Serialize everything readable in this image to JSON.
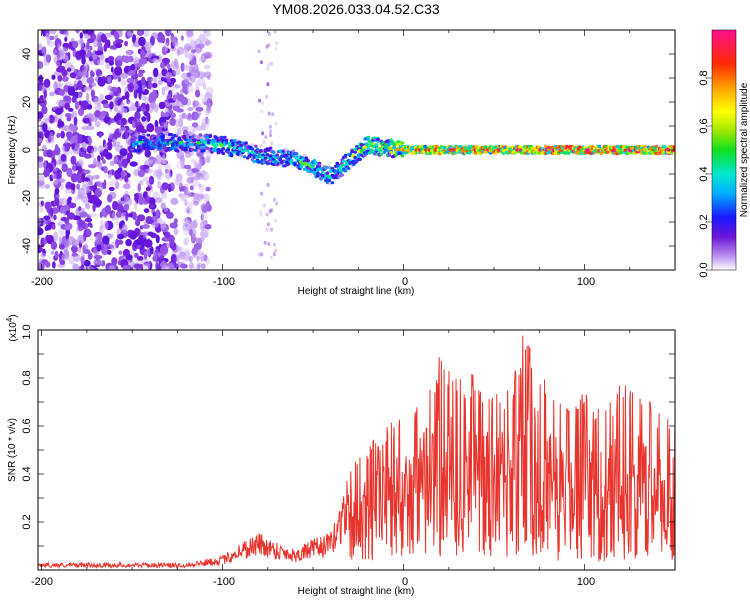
{
  "title": "YM08.2026.033.04.52.C33",
  "top_panel": {
    "ylabel": "Frequency (Hz)",
    "xlabel": "Height of straight line (km)",
    "x_ticks": [
      "-200",
      "-100",
      "0",
      "100"
    ],
    "y_ticks": [
      "40",
      "20",
      "0",
      "-20",
      "-40"
    ],
    "colorbar_label": "Normalized spectral amplitude",
    "colorbar_ticks": [
      "0.0",
      "0.2",
      "0.4",
      "0.6",
      "0.8"
    ]
  },
  "bottom_panel": {
    "ylabel": "SNR (10 * v/v)",
    "scale_label": "(x10",
    "scale_exp": "4",
    "scale_close": ")",
    "xlabel": "Height of straight line (km)",
    "x_ticks": [
      "-200",
      "-100",
      "0",
      "100"
    ],
    "y_ticks": [
      "1.0",
      "0.8",
      "0.6",
      "0.4",
      "0.2"
    ]
  },
  "colors": {
    "line": "#e8342c",
    "frame": "#000000"
  },
  "chart_data": [
    {
      "type": "heatmap",
      "title": "YM08.2026.033.04.52.C33",
      "xlabel": "Height of straight line (km)",
      "ylabel": "Frequency (Hz)",
      "xlim": [
        -202,
        150
      ],
      "ylim": [
        -50,
        50
      ],
      "x_ticks": [
        -200,
        -100,
        0,
        100
      ],
      "y_ticks": [
        -40,
        -20,
        0,
        20,
        40
      ],
      "colorbar": {
        "label": "Normalized spectral amplitude",
        "range": [
          0,
          1
        ],
        "ticks": [
          0.0,
          0.2,
          0.4,
          0.6,
          0.8
        ]
      },
      "ridge": [
        {
          "x": -140,
          "freq": 3,
          "amp": 0.35
        },
        {
          "x": -110,
          "freq": 3,
          "amp": 0.4
        },
        {
          "x": -100,
          "freq": 2,
          "amp": 0.45
        },
        {
          "x": -90,
          "freq": 0,
          "amp": 0.45
        },
        {
          "x": -80,
          "freq": -2,
          "amp": 0.45
        },
        {
          "x": -70,
          "freq": -3,
          "amp": 0.45
        },
        {
          "x": -60,
          "freq": -4,
          "amp": 0.45
        },
        {
          "x": -50,
          "freq": -7,
          "amp": 0.45
        },
        {
          "x": -40,
          "freq": -11,
          "amp": 0.45
        },
        {
          "x": -35,
          "freq": -8,
          "amp": 0.45
        },
        {
          "x": -30,
          "freq": -4,
          "amp": 0.5
        },
        {
          "x": -20,
          "freq": 2,
          "amp": 0.6
        },
        {
          "x": -10,
          "freq": 1,
          "amp": 0.6
        },
        {
          "x": 0,
          "freq": 0,
          "amp": 0.7
        },
        {
          "x": 20,
          "freq": 0,
          "amp": 0.8
        },
        {
          "x": 50,
          "freq": 0,
          "amp": 0.85
        },
        {
          "x": 80,
          "freq": 0,
          "amp": 0.9
        },
        {
          "x": 120,
          "freq": 0,
          "amp": 0.9
        },
        {
          "x": 150,
          "freq": 0,
          "amp": 0.9
        }
      ]
    },
    {
      "type": "line",
      "xlabel": "Height of straight line (km)",
      "ylabel": "SNR (10 * v/v)",
      "y_multiplier": 10000,
      "xlim": [
        -202,
        150
      ],
      "ylim": [
        0,
        1.0
      ],
      "x_ticks": [
        -200,
        -100,
        0,
        100
      ],
      "y_ticks": [
        0.2,
        0.4,
        0.6,
        0.8,
        1.0
      ],
      "envelope": {
        "x": [
          -202,
          -150,
          -120,
          -100,
          -90,
          -80,
          -70,
          -60,
          -50,
          -40,
          -30,
          -20,
          -10,
          0,
          10,
          20,
          30,
          40,
          50,
          60,
          70,
          80,
          90,
          100,
          110,
          120,
          130,
          140,
          150
        ],
        "max": [
          0.03,
          0.03,
          0.03,
          0.06,
          0.12,
          0.16,
          0.12,
          0.09,
          0.13,
          0.16,
          0.42,
          0.52,
          0.6,
          0.65,
          0.75,
          0.9,
          0.85,
          0.82,
          0.75,
          0.8,
          1.0,
          0.78,
          0.72,
          0.78,
          0.7,
          0.78,
          0.75,
          0.7,
          0.65
        ]
      }
    }
  ]
}
